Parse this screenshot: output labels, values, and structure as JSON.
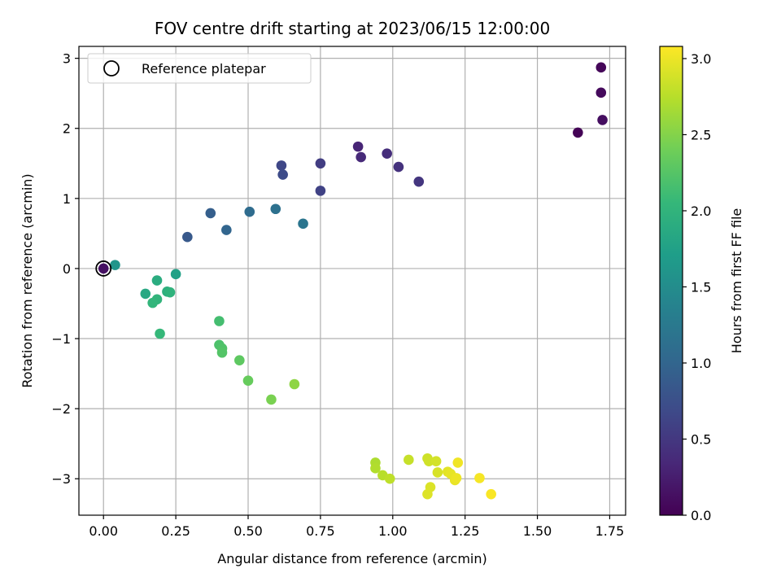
{
  "chart_data": {
    "type": "scatter",
    "title": "FOV centre drift starting at 2023/06/15 12:00:00",
    "xlabel": "Angular distance from reference (arcmin)",
    "ylabel": "Rotation from reference (arcmin)",
    "xlim": [
      -0.085,
      1.805
    ],
    "ylim": [
      -3.52,
      3.17
    ],
    "xticks": [
      0.0,
      0.25,
      0.5,
      0.75,
      1.0,
      1.25,
      1.5,
      1.75
    ],
    "xtick_labels": [
      "0.00",
      "0.25",
      "0.50",
      "0.75",
      "1.00",
      "1.25",
      "1.50",
      "1.75"
    ],
    "yticks": [
      -3,
      -2,
      -1,
      0,
      1,
      2,
      3
    ],
    "ytick_labels": [
      "−3",
      "−2",
      "−1",
      "0",
      "1",
      "2",
      "3"
    ],
    "grid": true,
    "legend": {
      "position": "top-left",
      "entries": [
        "Reference platepar"
      ]
    },
    "reference_point": {
      "x": 0.0,
      "y": 0.0
    },
    "colorbar": {
      "label": "Hours from first FF file",
      "colormap": "viridis",
      "range": [
        0.0,
        3.08
      ],
      "ticks": [
        0.0,
        0.5,
        1.0,
        1.5,
        2.0,
        2.5,
        3.0
      ],
      "tick_labels": [
        "0.0",
        "0.5",
        "1.0",
        "1.5",
        "2.0",
        "2.5",
        "3.0"
      ]
    },
    "points": [
      {
        "x": 1.64,
        "y": 1.94,
        "c": 0.02
      },
      {
        "x": 1.72,
        "y": 2.87,
        "c": 0.05
      },
      {
        "x": 1.72,
        "y": 2.51,
        "c": 0.08
      },
      {
        "x": 1.725,
        "y": 2.12,
        "c": 0.11
      },
      {
        "x": 0.0,
        "y": 0.0,
        "c": 0.14
      },
      {
        "x": 0.88,
        "y": 1.74,
        "c": 0.32
      },
      {
        "x": 0.89,
        "y": 1.59,
        "c": 0.36
      },
      {
        "x": 0.98,
        "y": 1.64,
        "c": 0.4
      },
      {
        "x": 1.02,
        "y": 1.45,
        "c": 0.44
      },
      {
        "x": 1.09,
        "y": 1.24,
        "c": 0.48
      },
      {
        "x": 0.75,
        "y": 1.5,
        "c": 0.55
      },
      {
        "x": 0.75,
        "y": 1.11,
        "c": 0.6
      },
      {
        "x": 0.615,
        "y": 1.47,
        "c": 0.65
      },
      {
        "x": 0.62,
        "y": 1.34,
        "c": 0.7
      },
      {
        "x": 0.29,
        "y": 0.45,
        "c": 0.85
      },
      {
        "x": 0.37,
        "y": 0.79,
        "c": 0.92
      },
      {
        "x": 0.425,
        "y": 0.55,
        "c": 1.0
      },
      {
        "x": 0.505,
        "y": 0.81,
        "c": 1.08
      },
      {
        "x": 0.595,
        "y": 0.85,
        "c": 1.15
      },
      {
        "x": 0.69,
        "y": 0.64,
        "c": 1.2
      },
      {
        "x": 0.04,
        "y": 0.05,
        "c": 1.6
      },
      {
        "x": 0.25,
        "y": -0.08,
        "c": 1.75
      },
      {
        "x": 0.145,
        "y": -0.36,
        "c": 1.85
      },
      {
        "x": 0.185,
        "y": -0.17,
        "c": 1.9
      },
      {
        "x": 0.22,
        "y": -0.33,
        "c": 1.95
      },
      {
        "x": 0.23,
        "y": -0.34,
        "c": 1.98
      },
      {
        "x": 0.185,
        "y": -0.44,
        "c": 2.0
      },
      {
        "x": 0.17,
        "y": -0.49,
        "c": 2.02
      },
      {
        "x": 0.195,
        "y": -0.93,
        "c": 2.05
      },
      {
        "x": 0.4,
        "y": -0.75,
        "c": 2.15
      },
      {
        "x": 0.4,
        "y": -1.09,
        "c": 2.2
      },
      {
        "x": 0.41,
        "y": -1.14,
        "c": 2.22
      },
      {
        "x": 0.41,
        "y": -1.2,
        "c": 2.24
      },
      {
        "x": 0.47,
        "y": -1.31,
        "c": 2.3
      },
      {
        "x": 0.5,
        "y": -1.6,
        "c": 2.35
      },
      {
        "x": 0.58,
        "y": -1.87,
        "c": 2.45
      },
      {
        "x": 0.66,
        "y": -1.65,
        "c": 2.55
      },
      {
        "x": 0.94,
        "y": -2.77,
        "c": 2.7
      },
      {
        "x": 0.94,
        "y": -2.85,
        "c": 2.72
      },
      {
        "x": 0.965,
        "y": -2.95,
        "c": 2.75
      },
      {
        "x": 0.99,
        "y": -3.0,
        "c": 2.78
      },
      {
        "x": 1.055,
        "y": -2.73,
        "c": 2.82
      },
      {
        "x": 1.12,
        "y": -2.71,
        "c": 2.85
      },
      {
        "x": 1.125,
        "y": -2.75,
        "c": 2.86
      },
      {
        "x": 1.15,
        "y": -2.75,
        "c": 2.88
      },
      {
        "x": 1.155,
        "y": -2.91,
        "c": 2.9
      },
      {
        "x": 1.13,
        "y": -3.12,
        "c": 2.92
      },
      {
        "x": 1.12,
        "y": -3.22,
        "c": 2.93
      },
      {
        "x": 1.19,
        "y": -2.9,
        "c": 2.95
      },
      {
        "x": 1.2,
        "y": -2.93,
        "c": 2.97
      },
      {
        "x": 1.215,
        "y": -3.02,
        "c": 2.98
      },
      {
        "x": 1.22,
        "y": -2.99,
        "c": 3.0
      },
      {
        "x": 1.225,
        "y": -2.77,
        "c": 3.02
      },
      {
        "x": 1.3,
        "y": -2.99,
        "c": 3.04
      },
      {
        "x": 1.34,
        "y": -3.22,
        "c": 3.06
      }
    ]
  }
}
